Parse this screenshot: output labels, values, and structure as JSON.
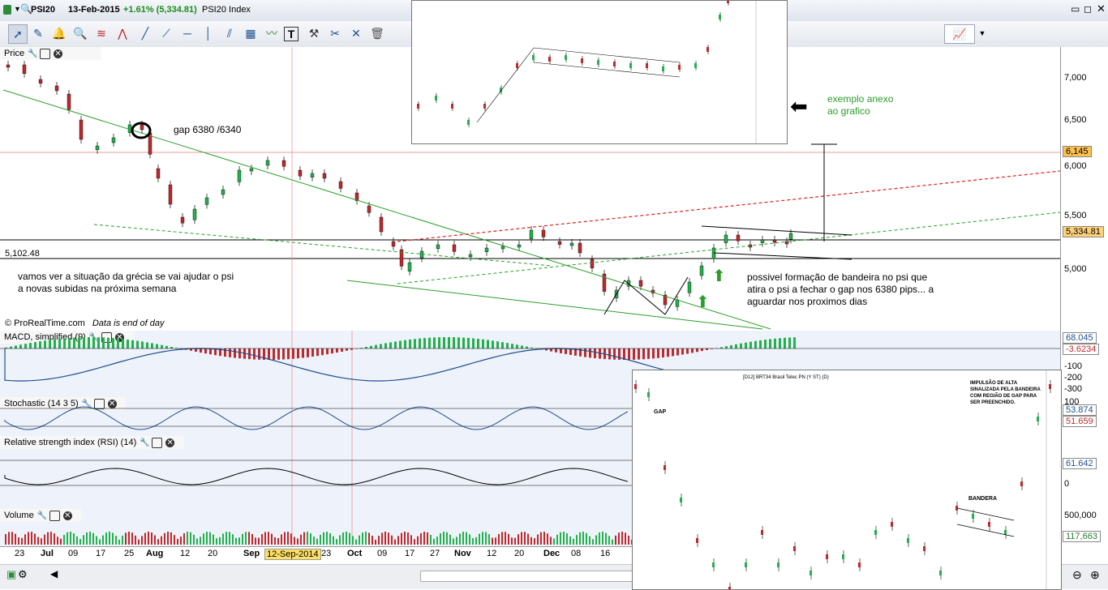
{
  "window": {
    "symbol": "PSI20",
    "date": "13-Feb-2015",
    "change": "+1.61% (5,334.81)",
    "instrument_name": "PSI20 Index"
  },
  "panes": {
    "price": {
      "title": "Price"
    },
    "macd": {
      "title": "MACD, simplified (9)"
    },
    "stoch": {
      "title": "Stochastic (14 3 5)"
    },
    "rsi": {
      "title": "Relative strength index (RSI) (14)"
    },
    "volume": {
      "title": "Volume"
    }
  },
  "price_scale": [
    "7,000",
    "6,500",
    "6,000",
    "5,500",
    "5,000"
  ],
  "badges": {
    "hline_6145": "6,145",
    "last_price": "5,334.81",
    "macd_1": "68.045",
    "macd_2": "-3.6234",
    "stoch_1": "53.874",
    "stoch_2": "51.659",
    "rsi": "61.642",
    "volume": "117,663"
  },
  "macd_scale": [
    "-100",
    "-200",
    "-300"
  ],
  "stoch_scale": [
    "100"
  ],
  "rsi_scale": [
    "0"
  ],
  "volume_scale": [
    "500,000"
  ],
  "hline_label": "5,102.48",
  "copyright": "© ProRealTime.com",
  "data_note": "Data is end of day",
  "annotations": {
    "gap": "gap 6380 /6340",
    "greece_l1": "vamos ver a situação da grécia se vai ajudar o psi",
    "greece_l2": "a novas subidas na próxima semana",
    "flag_l1": "possivel formação de bandeira no psi que",
    "flag_l2": "atira o psi a fechar o gap nos 6380 pips... a",
    "flag_l3": "aguardar nos proximos dias",
    "example_l1": "exemplo anexo",
    "example_l2": "ao grafico"
  },
  "inset_bottom": {
    "header": "[D12] BRT34 Brasil Telec PN   (Y ST)   (D)",
    "gap": "GAP",
    "bandeira": "BANDERA",
    "note": "IMPULSÃO DE ALTA SINALIZADA PELA BANDEIRA COM REGIÃO DE GAP PARA SER PREENCHIDO."
  },
  "x_labels": [
    "23",
    "Jul",
    "09",
    "17",
    "25",
    "Aug",
    "12",
    "20",
    "Sep",
    "23",
    "Oct",
    "09",
    "17",
    "27",
    "Nov",
    "12",
    "20",
    "Dec",
    "08",
    "16"
  ],
  "cursor_date": "12-Sep-2014",
  "icons": [
    "selection-arrow",
    "pencil-icon",
    "bell-icon",
    "zoom-icon",
    "fibonacci-icon",
    "line-icon",
    "close-icon",
    "trash-icon"
  ],
  "colors": {
    "up": "#22b14c",
    "down": "#c0282c",
    "accent": "#1d4f91"
  }
}
